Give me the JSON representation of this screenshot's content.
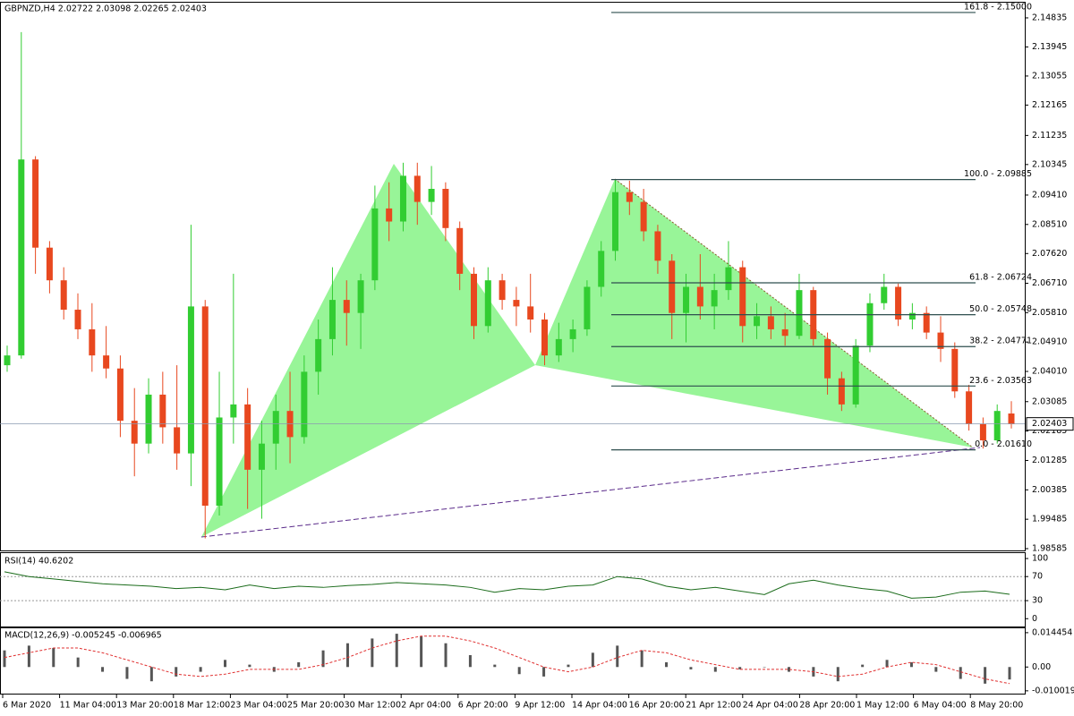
{
  "chart_data": [
    {
      "type": "candlestick",
      "title": "GBPNZD,H4  2.02722 2.03098 2.02265 2.02403",
      "up_color": "#32cd32",
      "down_color": "#e8481f",
      "ylim": [
        1.9853,
        2.153
      ],
      "yticks": [
        2.14835,
        2.13945,
        2.13055,
        2.12165,
        2.11235,
        2.10345,
        {
          "value": 2.0941,
          "label": "2.09410"
        },
        {
          "value": 2.0851,
          "label": "2.08510"
        },
        {
          "value": 2.0762,
          "label": "2.07620"
        },
        {
          "value": 2.0671,
          "label": "2.06710"
        },
        {
          "value": 2.0581,
          "label": "2.05810"
        },
        {
          "value": 2.0491,
          "label": "2.04910"
        },
        {
          "value": 2.0401,
          "label": "2.04010"
        },
        2.03085,
        2.02185,
        2.01285,
        2.00385,
        1.99485,
        1.98585
      ],
      "current_price": 2.02403,
      "time_labels": [
        "6 Mar 2020",
        "11 Mar 04:00",
        "13 Mar 20:00",
        "18 Mar 12:00",
        "23 Mar 04:00",
        "25 Mar 20:00",
        "30 Mar 12:00",
        "2 Apr 04:00",
        "6 Apr 20:00",
        "9 Apr 12:00",
        "14 Apr 04:00",
        "16 Apr 20:00",
        "21 Apr 12:00",
        "24 Apr 04:00",
        "28 Apr 20:00",
        "1 May 12:00",
        "6 May 04:00",
        "8 May 20:00"
      ],
      "fibonacci": [
        {
          "label": "161.8 - 2.15000",
          "value": 2.15
        },
        {
          "label": "100.0 - 2.09885",
          "value": 2.09885
        },
        {
          "label": "61.8 - 2.06724",
          "value": 2.06724
        },
        {
          "label": "50.0 - 2.05748",
          "value": 2.05748
        },
        {
          "label": "38.2 - 2.04771",
          "value": 2.04771
        },
        {
          "label": "23.6 - 2.03563",
          "value": 2.03563
        },
        {
          "label": "0.0 - 2.01610",
          "value": 2.0161
        }
      ],
      "candles": [
        {
          "open": 2.042,
          "high": 2.048,
          "low": 2.04,
          "close": 2.045
        },
        {
          "open": 2.045,
          "high": 2.144,
          "low": 2.044,
          "close": 2.105
        },
        {
          "open": 2.105,
          "high": 2.106,
          "low": 2.07,
          "close": 2.078
        },
        {
          "open": 2.078,
          "high": 2.08,
          "low": 2.064,
          "close": 2.068
        },
        {
          "open": 2.068,
          "high": 2.072,
          "low": 2.056,
          "close": 2.059
        },
        {
          "open": 2.059,
          "high": 2.064,
          "low": 2.05,
          "close": 2.053
        },
        {
          "open": 2.053,
          "high": 2.061,
          "low": 2.04,
          "close": 2.045
        },
        {
          "open": 2.045,
          "high": 2.054,
          "low": 2.038,
          "close": 2.041
        },
        {
          "open": 2.041,
          "high": 2.045,
          "low": 2.02,
          "close": 2.025
        },
        {
          "open": 2.025,
          "high": 2.035,
          "low": 2.008,
          "close": 2.018
        },
        {
          "open": 2.018,
          "high": 2.038,
          "low": 2.015,
          "close": 2.033
        },
        {
          "open": 2.033,
          "high": 2.04,
          "low": 2.018,
          "close": 2.023
        },
        {
          "open": 2.023,
          "high": 2.042,
          "low": 2.01,
          "close": 2.015
        },
        {
          "open": 2.015,
          "high": 2.085,
          "low": 2.005,
          "close": 2.06
        },
        {
          "open": 2.06,
          "high": 2.062,
          "low": 1.989,
          "close": 1.999
        },
        {
          "open": 1.999,
          "high": 2.04,
          "low": 1.996,
          "close": 2.026
        },
        {
          "open": 2.026,
          "high": 2.07,
          "low": 2.018,
          "close": 2.03
        },
        {
          "open": 2.03,
          "high": 2.035,
          "low": 1.998,
          "close": 2.01
        },
        {
          "open": 2.01,
          "high": 2.025,
          "low": 1.995,
          "close": 2.018
        },
        {
          "open": 2.018,
          "high": 2.033,
          "low": 2.01,
          "close": 2.028
        },
        {
          "open": 2.028,
          "high": 2.04,
          "low": 2.012,
          "close": 2.02
        },
        {
          "open": 2.02,
          "high": 2.045,
          "low": 2.018,
          "close": 2.04
        },
        {
          "open": 2.04,
          "high": 2.056,
          "low": 2.033,
          "close": 2.05
        },
        {
          "open": 2.05,
          "high": 2.072,
          "low": 2.045,
          "close": 2.062
        },
        {
          "open": 2.062,
          "high": 2.068,
          "low": 2.048,
          "close": 2.058
        },
        {
          "open": 2.058,
          "high": 2.07,
          "low": 2.047,
          "close": 2.068
        },
        {
          "open": 2.068,
          "high": 2.097,
          "low": 2.065,
          "close": 2.09
        },
        {
          "open": 2.09,
          "high": 2.098,
          "low": 2.08,
          "close": 2.086
        },
        {
          "open": 2.086,
          "high": 2.104,
          "low": 2.083,
          "close": 2.1
        },
        {
          "open": 2.1,
          "high": 2.104,
          "low": 2.085,
          "close": 2.092
        },
        {
          "open": 2.092,
          "high": 2.103,
          "low": 2.088,
          "close": 2.096
        },
        {
          "open": 2.096,
          "high": 2.098,
          "low": 2.08,
          "close": 2.084
        },
        {
          "open": 2.084,
          "high": 2.086,
          "low": 2.065,
          "close": 2.07
        },
        {
          "open": 2.07,
          "high": 2.072,
          "low": 2.05,
          "close": 2.054
        },
        {
          "open": 2.054,
          "high": 2.072,
          "low": 2.052,
          "close": 2.068
        },
        {
          "open": 2.068,
          "high": 2.07,
          "low": 2.059,
          "close": 2.062
        },
        {
          "open": 2.062,
          "high": 2.066,
          "low": 2.054,
          "close": 2.06
        },
        {
          "open": 2.06,
          "high": 2.07,
          "low": 2.052,
          "close": 2.056
        },
        {
          "open": 2.056,
          "high": 2.058,
          "low": 2.042,
          "close": 2.045
        },
        {
          "open": 2.045,
          "high": 2.055,
          "low": 2.043,
          "close": 2.05
        },
        {
          "open": 2.05,
          "high": 2.056,
          "low": 2.046,
          "close": 2.053
        },
        {
          "open": 2.053,
          "high": 2.068,
          "low": 2.051,
          "close": 2.066
        },
        {
          "open": 2.066,
          "high": 2.08,
          "low": 2.063,
          "close": 2.077
        },
        {
          "open": 2.077,
          "high": 2.099,
          "low": 2.074,
          "close": 2.095
        },
        {
          "open": 2.095,
          "high": 2.0985,
          "low": 2.088,
          "close": 2.092
        },
        {
          "open": 2.092,
          "high": 2.096,
          "low": 2.08,
          "close": 2.083
        },
        {
          "open": 2.083,
          "high": 2.085,
          "low": 2.07,
          "close": 2.074
        },
        {
          "open": 2.074,
          "high": 2.076,
          "low": 2.05,
          "close": 2.058
        },
        {
          "open": 2.058,
          "high": 2.07,
          "low": 2.049,
          "close": 2.066
        },
        {
          "open": 2.066,
          "high": 2.076,
          "low": 2.056,
          "close": 2.06
        },
        {
          "open": 2.06,
          "high": 2.07,
          "low": 2.053,
          "close": 2.065
        },
        {
          "open": 2.065,
          "high": 2.08,
          "low": 2.062,
          "close": 2.072
        },
        {
          "open": 2.072,
          "high": 2.074,
          "low": 2.049,
          "close": 2.054
        },
        {
          "open": 2.054,
          "high": 2.061,
          "low": 2.05,
          "close": 2.057
        },
        {
          "open": 2.057,
          "high": 2.06,
          "low": 2.05,
          "close": 2.053
        },
        {
          "open": 2.053,
          "high": 2.058,
          "low": 2.048,
          "close": 2.051
        },
        {
          "open": 2.051,
          "high": 2.07,
          "low": 2.05,
          "close": 2.065
        },
        {
          "open": 2.065,
          "high": 2.066,
          "low": 2.048,
          "close": 2.05
        },
        {
          "open": 2.05,
          "high": 2.052,
          "low": 2.033,
          "close": 2.038
        },
        {
          "open": 2.038,
          "high": 2.04,
          "low": 2.028,
          "close": 2.03
        },
        {
          "open": 2.03,
          "high": 2.05,
          "low": 2.029,
          "close": 2.048
        },
        {
          "open": 2.048,
          "high": 2.064,
          "low": 2.046,
          "close": 2.061
        },
        {
          "open": 2.061,
          "high": 2.07,
          "low": 2.059,
          "close": 2.066
        },
        {
          "open": 2.066,
          "high": 2.067,
          "low": 2.054,
          "close": 2.056
        },
        {
          "open": 2.056,
          "high": 2.061,
          "low": 2.053,
          "close": 2.058
        },
        {
          "open": 2.058,
          "high": 2.06,
          "low": 2.05,
          "close": 2.052
        },
        {
          "open": 2.052,
          "high": 2.057,
          "low": 2.043,
          "close": 2.047
        },
        {
          "open": 2.047,
          "high": 2.049,
          "low": 2.032,
          "close": 2.034
        },
        {
          "open": 2.034,
          "high": 2.036,
          "low": 2.022,
          "close": 2.024
        },
        {
          "open": 2.024,
          "high": 2.026,
          "low": 2.0165,
          "close": 2.019
        },
        {
          "open": 2.019,
          "high": 2.03,
          "low": 2.018,
          "close": 2.028
        },
        {
          "open": 2.02722,
          "high": 2.03098,
          "low": 2.02265,
          "close": 2.02403
        }
      ]
    },
    {
      "type": "line",
      "title": "RSI(14) 40.6202",
      "color": "#1a6b1a",
      "level_color": "#999999",
      "ylim": [
        -13,
        109
      ],
      "yticks": [
        100,
        70,
        30,
        0
      ],
      "levels": [
        70,
        30
      ],
      "values": [
        78,
        70,
        66,
        62,
        58,
        56,
        54,
        50,
        52,
        48,
        56,
        50,
        54,
        52,
        55,
        57,
        60,
        58,
        56,
        52,
        44,
        50,
        48,
        54,
        56,
        70,
        66,
        54,
        48,
        52,
        46,
        40,
        58,
        64,
        56,
        50,
        46,
        34,
        36,
        44,
        46,
        40.62
      ]
    },
    {
      "type": "bar",
      "title": "MACD(12,26,9) -0.005245 -0.006965",
      "color": "#555555",
      "signal_color": "#e03030",
      "ylim": [
        -0.0112,
        0.0163
      ],
      "yticks": [
        0.014454,
        {
          "value": 0,
          "label": "0.00"
        },
        -0.010019
      ],
      "values": [
        0.007,
        0.009,
        0.008,
        0.004,
        -0.002,
        -0.005,
        -0.006,
        -0.004,
        -0.002,
        0.003,
        0.001,
        -0.002,
        0.002,
        0.007,
        0.01,
        0.012,
        0.014,
        0.013,
        0.01,
        0.005,
        0.001,
        -0.003,
        -0.004,
        0.001,
        0.006,
        0.009,
        0.007,
        0.002,
        -0.001,
        -0.002,
        -0.001,
        0,
        -0.002,
        -0.004,
        -0.006,
        0.001,
        0.003,
        0.002,
        -0.002,
        -0.005,
        -0.007,
        -0.005245
      ],
      "signal": [
        0.004,
        0.006,
        0.008,
        0.008,
        0.006,
        0.003,
        0,
        -0.003,
        -0.004,
        -0.003,
        -0.001,
        -0.001,
        -0.001,
        0.001,
        0.004,
        0.008,
        0.011,
        0.013,
        0.013,
        0.011,
        0.008,
        0.004,
        0,
        -0.002,
        0,
        0.004,
        0.007,
        0.006,
        0.003,
        0.001,
        -0.001,
        -0.001,
        -0.001,
        -0.002,
        -0.004,
        -0.003,
        0,
        0.002,
        0.001,
        -0.002,
        -0.005,
        -0.006965
      ]
    }
  ]
}
